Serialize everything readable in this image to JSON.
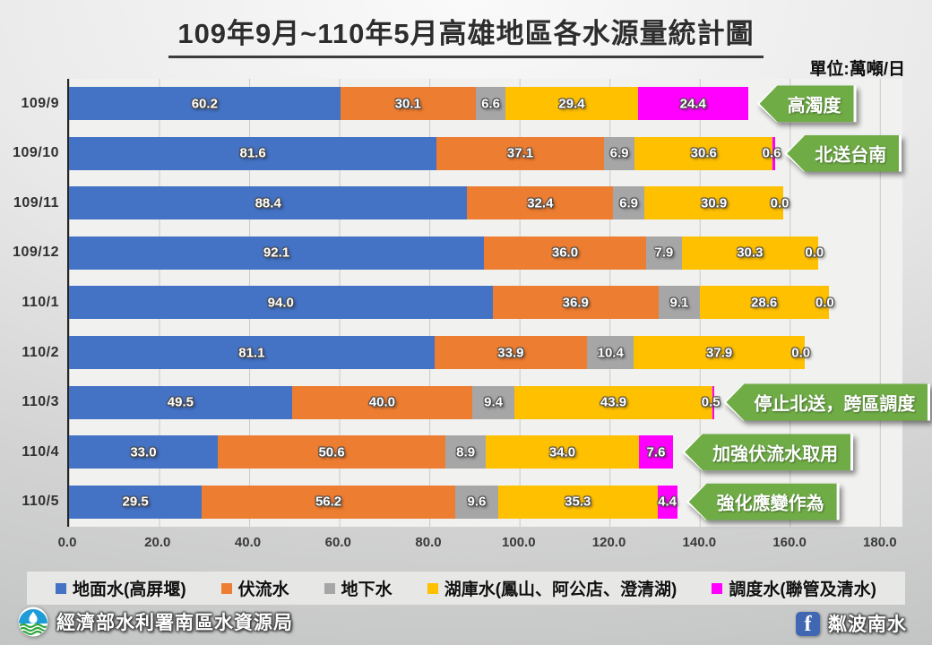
{
  "slide": {
    "title": "109年9月~110年5月高雄地區各水源量統計圖",
    "unit_label": "單位:萬噸/日"
  },
  "chart_data": {
    "type": "bar",
    "variant": "horizontal-stacked",
    "title": "109年9月~110年5月高雄地區各水源量統計圖",
    "unit": "萬噸/日",
    "categories": [
      "109/9",
      "109/10",
      "109/11",
      "109/12",
      "110/1",
      "110/2",
      "110/3",
      "110/4",
      "110/5"
    ],
    "series": [
      {
        "name": "地面水(高屏堰)",
        "color": "#4472C4",
        "values": [
          60.2,
          81.6,
          88.4,
          92.1,
          94.0,
          81.1,
          49.5,
          33.0,
          29.5
        ]
      },
      {
        "name": "伏流水",
        "color": "#ED7D31",
        "values": [
          30.1,
          37.1,
          32.4,
          36.0,
          36.9,
          33.9,
          40.0,
          50.6,
          56.2
        ]
      },
      {
        "name": "地下水",
        "color": "#A6A6A6",
        "values": [
          6.6,
          6.9,
          6.9,
          7.9,
          9.1,
          10.4,
          9.4,
          8.9,
          9.6
        ]
      },
      {
        "name": "湖庫水(鳳山、阿公店、澄清湖)",
        "color": "#FFC000",
        "values": [
          29.4,
          30.6,
          30.9,
          30.3,
          28.6,
          37.9,
          43.9,
          34.0,
          35.3
        ]
      },
      {
        "name": "調度水(聯管及清水)",
        "color": "#FF00FF",
        "values": [
          24.4,
          0.6,
          0.0,
          0.0,
          0.0,
          0.0,
          0.5,
          7.6,
          4.4
        ]
      }
    ],
    "annotations": [
      {
        "category": "109/9",
        "text": "高濁度"
      },
      {
        "category": "109/10",
        "text": "北送台南"
      },
      {
        "category": "110/3",
        "text": "停止北送，跨區調度"
      },
      {
        "category": "110/4",
        "text": "加強伏流水取用"
      },
      {
        "category": "110/5",
        "text": "強化應變作為"
      }
    ],
    "annotation_style": {
      "fill": "#6FAC46",
      "text_color": "#ffffff"
    },
    "xlim": [
      0,
      185
    ],
    "x_ticks": [
      0,
      20,
      40,
      60,
      80,
      100,
      120,
      140,
      160,
      180
    ],
    "tick_format": "one-decimal",
    "grid": true,
    "legend_position": "bottom"
  },
  "footer": {
    "org_name": "經濟部水利署南區水資源局",
    "facebook_label": "粼波南水",
    "facebook_glyph": "f"
  },
  "colors": {
    "callout_green": "#6FAC46",
    "facebook_blue": "#4267B2"
  }
}
